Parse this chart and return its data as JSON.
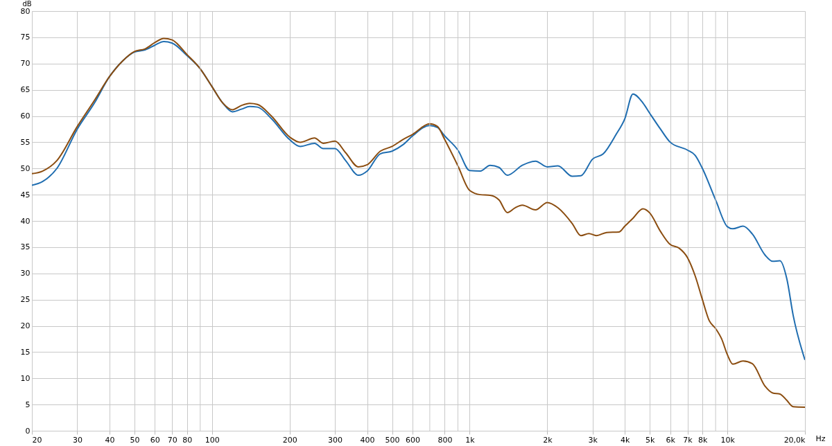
{
  "chart_data": {
    "type": "line",
    "ylabel": "dB",
    "xlim": [
      20,
      20000
    ],
    "ylim": [
      0,
      80
    ],
    "xticks": [
      20,
      30,
      40,
      50,
      60,
      70,
      80,
      {
        "value": 90,
        "label": null
      },
      100,
      200,
      300,
      400,
      500,
      600,
      {
        "value": 700,
        "label": null
      },
      800,
      {
        "value": 900,
        "label": null
      },
      {
        "value": 1000,
        "label": "1k"
      },
      {
        "value": 2000,
        "label": "2k"
      },
      {
        "value": 3000,
        "label": "3k"
      },
      {
        "value": 4000,
        "label": "4k"
      },
      {
        "value": 5000,
        "label": "5k"
      },
      {
        "value": 6000,
        "label": "6k"
      },
      {
        "value": 7000,
        "label": "7k"
      },
      {
        "value": 8000,
        "label": "8k"
      },
      {
        "value": 9000,
        "label": null
      },
      {
        "value": 10000,
        "label": "10k"
      },
      {
        "value": 20000,
        "label": "20,0k"
      }
    ],
    "xlabel": "Hz",
    "yticks": [
      0,
      5,
      10,
      15,
      20,
      25,
      30,
      35,
      40,
      45,
      50,
      55,
      60,
      65,
      70,
      75,
      80
    ],
    "log": "x",
    "grid": true,
    "marker": "none",
    "line_style": "solid",
    "series": [
      {
        "color": "#1f6db0",
        "x": [
          20,
          22,
          25,
          30,
          35,
          40,
          45,
          50,
          55,
          60,
          65,
          70,
          80,
          90,
          100,
          110,
          120,
          130,
          140,
          150,
          170,
          200,
          220,
          250,
          270,
          300,
          330,
          370,
          400,
          450,
          500,
          550,
          600,
          700,
          750,
          800,
          900,
          1000,
          1100,
          1200,
          1300,
          1400,
          1600,
          1800,
          2000,
          2200,
          2500,
          2700,
          3000,
          3300,
          3700,
          4000,
          4300,
          4700,
          5000,
          5500,
          6000,
          7000,
          7500,
          8000,
          9000,
          10000,
          10500,
          11500,
          12500,
          14000,
          15000,
          16000,
          17000,
          18000,
          20000
        ],
        "values": [
          46.8,
          47.5,
          50,
          57.5,
          62.5,
          67.5,
          70.5,
          72.2,
          72.6,
          73.5,
          74.2,
          73.9,
          71.5,
          69,
          65.6,
          62.5,
          60.8,
          61.3,
          61.8,
          61.7,
          59.5,
          55.5,
          54.2,
          54.8,
          53.8,
          53.8,
          51.5,
          48.7,
          49.5,
          52.8,
          53.3,
          54.5,
          56.2,
          58.2,
          57.8,
          56.2,
          53.5,
          49.6,
          49.5,
          50.6,
          50.2,
          48.7,
          50.6,
          51.4,
          50.3,
          50.5,
          48.5,
          48.6,
          51.8,
          52.8,
          56.5,
          59.5,
          64.2,
          62.5,
          60.5,
          57.5,
          55,
          53.5,
          52.5,
          50,
          44,
          38.9,
          38.5,
          39,
          37.5,
          33.5,
          32.3,
          32.4,
          29,
          22,
          13.5
        ]
      },
      {
        "color": "#8b4d10",
        "x": [
          20,
          22,
          25,
          30,
          35,
          40,
          45,
          50,
          55,
          60,
          65,
          70,
          80,
          90,
          100,
          110,
          120,
          130,
          140,
          150,
          170,
          200,
          220,
          250,
          270,
          300,
          330,
          370,
          400,
          450,
          500,
          550,
          600,
          700,
          750,
          800,
          900,
          1000,
          1100,
          1200,
          1300,
          1400,
          1500,
          1600,
          1800,
          2000,
          2200,
          2500,
          2700,
          2900,
          3100,
          3400,
          3800,
          4000,
          4300,
          4700,
          5000,
          5500,
          6000,
          6500,
          7000,
          7500,
          8000,
          8500,
          9000,
          9500,
          10000,
          10500,
          11500,
          12500,
          14000,
          15000,
          16000,
          17000,
          18000,
          20000
        ],
        "values": [
          49,
          49.5,
          51.5,
          58,
          63,
          67.5,
          70.5,
          72.3,
          72.8,
          74,
          74.8,
          74.5,
          71.7,
          69,
          65.6,
          62.5,
          61.2,
          62,
          62.4,
          62.2,
          60,
          56,
          55,
          55.8,
          54.8,
          55.2,
          53,
          50.3,
          50.7,
          53.3,
          54.2,
          55.5,
          56.5,
          58.5,
          58,
          55.5,
          50.5,
          45.8,
          45,
          44.9,
          44,
          41.6,
          42.5,
          43,
          42.1,
          43.5,
          42.5,
          39.5,
          37.2,
          37.6,
          37.2,
          37.8,
          37.9,
          39,
          40.5,
          42.3,
          41.5,
          38,
          35.5,
          34.8,
          33,
          29.5,
          25,
          21,
          19.5,
          17.5,
          14.5,
          12.7,
          13.3,
          12.8,
          8.5,
          7.2,
          7,
          5.8,
          4.6,
          4.5
        ]
      }
    ]
  }
}
